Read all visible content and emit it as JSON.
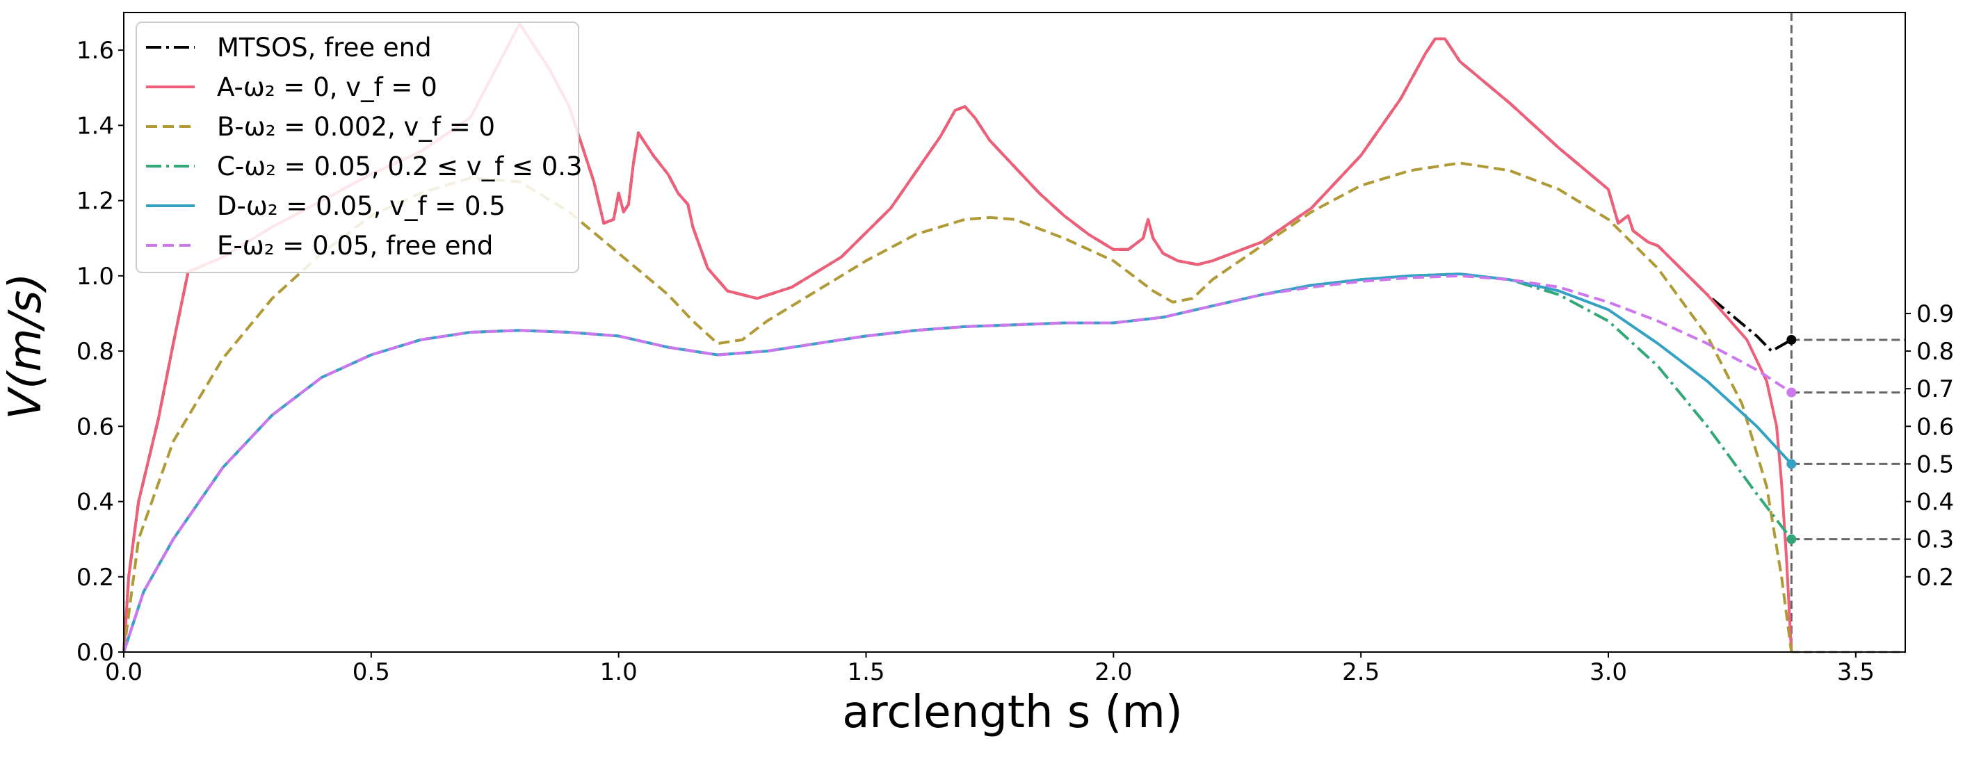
{
  "chart_data": {
    "type": "line",
    "xlabel": "arclength s (m)",
    "ylabel": "V(m/s)",
    "xlim": [
      0.0,
      3.6
    ],
    "ylim": [
      0.0,
      1.7
    ],
    "xticks": [
      "0.0",
      "0.5",
      "1.0",
      "1.5",
      "2.0",
      "2.5",
      "3.0",
      "3.5"
    ],
    "yticks": [
      "0.0",
      "0.2",
      "0.4",
      "0.6",
      "0.8",
      "1.0",
      "1.2",
      "1.4",
      "1.6"
    ],
    "right_ticks": [
      "0.2",
      "0.3",
      "0.4",
      "0.5",
      "0.6",
      "0.7",
      "0.8",
      "0.9"
    ],
    "grid": false,
    "legend_position": "upper-left",
    "end_marker_s": 3.37,
    "series": [
      {
        "name": "MTSOS, free end",
        "color": "#000000",
        "style": "dashdot",
        "end_value": 0.83,
        "points": [
          [
            0,
            0
          ],
          [
            0.01,
            0.2
          ],
          [
            0.03,
            0.4
          ],
          [
            0.07,
            0.62
          ],
          [
            0.1,
            0.82
          ],
          [
            0.13,
            1.01
          ],
          [
            0.2,
            1.05
          ],
          [
            0.3,
            1.13
          ],
          [
            0.4,
            1.2
          ],
          [
            0.5,
            1.27
          ],
          [
            0.6,
            1.33
          ],
          [
            0.7,
            1.42
          ],
          [
            0.8,
            1.67
          ],
          [
            0.86,
            1.55
          ],
          [
            0.9,
            1.45
          ],
          [
            0.95,
            1.25
          ],
          [
            0.97,
            1.14
          ],
          [
            0.99,
            1.15
          ],
          [
            1.0,
            1.22
          ],
          [
            1.01,
            1.17
          ],
          [
            1.02,
            1.19
          ],
          [
            1.03,
            1.3
          ],
          [
            1.04,
            1.38
          ],
          [
            1.07,
            1.32
          ],
          [
            1.1,
            1.27
          ],
          [
            1.12,
            1.22
          ],
          [
            1.14,
            1.19
          ],
          [
            1.15,
            1.13
          ],
          [
            1.18,
            1.02
          ],
          [
            1.22,
            0.96
          ],
          [
            1.28,
            0.94
          ],
          [
            1.35,
            0.97
          ],
          [
            1.45,
            1.05
          ],
          [
            1.55,
            1.18
          ],
          [
            1.65,
            1.37
          ],
          [
            1.68,
            1.44
          ],
          [
            1.7,
            1.45
          ],
          [
            1.72,
            1.42
          ],
          [
            1.75,
            1.36
          ],
          [
            1.8,
            1.29
          ],
          [
            1.85,
            1.22
          ],
          [
            1.9,
            1.16
          ],
          [
            1.95,
            1.11
          ],
          [
            2.0,
            1.07
          ],
          [
            2.03,
            1.07
          ],
          [
            2.06,
            1.1
          ],
          [
            2.07,
            1.15
          ],
          [
            2.08,
            1.1
          ],
          [
            2.1,
            1.06
          ],
          [
            2.13,
            1.04
          ],
          [
            2.17,
            1.03
          ],
          [
            2.2,
            1.04
          ],
          [
            2.3,
            1.09
          ],
          [
            2.4,
            1.18
          ],
          [
            2.5,
            1.32
          ],
          [
            2.58,
            1.47
          ],
          [
            2.63,
            1.59
          ],
          [
            2.65,
            1.63
          ],
          [
            2.67,
            1.63
          ],
          [
            2.7,
            1.57
          ],
          [
            2.8,
            1.46
          ],
          [
            2.9,
            1.34
          ],
          [
            3.0,
            1.23
          ],
          [
            3.02,
            1.14
          ],
          [
            3.04,
            1.16
          ],
          [
            3.05,
            1.12
          ],
          [
            3.08,
            1.09
          ],
          [
            3.1,
            1.08
          ],
          [
            3.2,
            0.95
          ],
          [
            3.3,
            0.84
          ],
          [
            3.33,
            0.8
          ],
          [
            3.37,
            0.83
          ]
        ]
      },
      {
        "name": "A-ω₂ = 0, v_f = 0",
        "color": "#ef5f7a",
        "style": "solid",
        "end_value": null,
        "points": [
          [
            0,
            0
          ],
          [
            0.01,
            0.2
          ],
          [
            0.03,
            0.4
          ],
          [
            0.07,
            0.62
          ],
          [
            0.1,
            0.82
          ],
          [
            0.13,
            1.01
          ],
          [
            0.2,
            1.05
          ],
          [
            0.3,
            1.13
          ],
          [
            0.4,
            1.2
          ],
          [
            0.5,
            1.27
          ],
          [
            0.6,
            1.33
          ],
          [
            0.7,
            1.42
          ],
          [
            0.8,
            1.67
          ],
          [
            0.86,
            1.55
          ],
          [
            0.9,
            1.45
          ],
          [
            0.95,
            1.25
          ],
          [
            0.97,
            1.14
          ],
          [
            0.99,
            1.15
          ],
          [
            1.0,
            1.22
          ],
          [
            1.01,
            1.17
          ],
          [
            1.02,
            1.19
          ],
          [
            1.03,
            1.3
          ],
          [
            1.04,
            1.38
          ],
          [
            1.07,
            1.32
          ],
          [
            1.1,
            1.27
          ],
          [
            1.12,
            1.22
          ],
          [
            1.14,
            1.19
          ],
          [
            1.15,
            1.13
          ],
          [
            1.18,
            1.02
          ],
          [
            1.22,
            0.96
          ],
          [
            1.28,
            0.94
          ],
          [
            1.35,
            0.97
          ],
          [
            1.45,
            1.05
          ],
          [
            1.55,
            1.18
          ],
          [
            1.65,
            1.37
          ],
          [
            1.68,
            1.44
          ],
          [
            1.7,
            1.45
          ],
          [
            1.72,
            1.42
          ],
          [
            1.75,
            1.36
          ],
          [
            1.8,
            1.29
          ],
          [
            1.85,
            1.22
          ],
          [
            1.9,
            1.16
          ],
          [
            1.95,
            1.11
          ],
          [
            2.0,
            1.07
          ],
          [
            2.03,
            1.07
          ],
          [
            2.06,
            1.1
          ],
          [
            2.07,
            1.15
          ],
          [
            2.08,
            1.1
          ],
          [
            2.1,
            1.06
          ],
          [
            2.13,
            1.04
          ],
          [
            2.17,
            1.03
          ],
          [
            2.2,
            1.04
          ],
          [
            2.3,
            1.09
          ],
          [
            2.4,
            1.18
          ],
          [
            2.5,
            1.32
          ],
          [
            2.58,
            1.47
          ],
          [
            2.63,
            1.59
          ],
          [
            2.65,
            1.63
          ],
          [
            2.67,
            1.63
          ],
          [
            2.7,
            1.57
          ],
          [
            2.8,
            1.46
          ],
          [
            2.9,
            1.34
          ],
          [
            3.0,
            1.23
          ],
          [
            3.02,
            1.14
          ],
          [
            3.04,
            1.16
          ],
          [
            3.05,
            1.12
          ],
          [
            3.08,
            1.09
          ],
          [
            3.1,
            1.08
          ],
          [
            3.2,
            0.95
          ],
          [
            3.28,
            0.83
          ],
          [
            3.32,
            0.72
          ],
          [
            3.34,
            0.6
          ],
          [
            3.35,
            0.45
          ],
          [
            3.36,
            0.25
          ],
          [
            3.37,
            0.0
          ]
        ]
      },
      {
        "name": "B-ω₂ = 0.002, v_f = 0",
        "color": "#b09a36",
        "style": "dashed",
        "end_value": null,
        "points": [
          [
            0,
            0
          ],
          [
            0.03,
            0.3
          ],
          [
            0.1,
            0.56
          ],
          [
            0.2,
            0.78
          ],
          [
            0.3,
            0.94
          ],
          [
            0.4,
            1.06
          ],
          [
            0.5,
            1.16
          ],
          [
            0.6,
            1.22
          ],
          [
            0.7,
            1.26
          ],
          [
            0.8,
            1.25
          ],
          [
            0.9,
            1.17
          ],
          [
            1.0,
            1.06
          ],
          [
            1.1,
            0.95
          ],
          [
            1.15,
            0.88
          ],
          [
            1.2,
            0.82
          ],
          [
            1.25,
            0.83
          ],
          [
            1.3,
            0.88
          ],
          [
            1.4,
            0.96
          ],
          [
            1.5,
            1.04
          ],
          [
            1.6,
            1.11
          ],
          [
            1.7,
            1.15
          ],
          [
            1.75,
            1.155
          ],
          [
            1.8,
            1.15
          ],
          [
            1.9,
            1.1
          ],
          [
            2.0,
            1.04
          ],
          [
            2.08,
            0.96
          ],
          [
            2.12,
            0.93
          ],
          [
            2.16,
            0.94
          ],
          [
            2.2,
            0.99
          ],
          [
            2.3,
            1.08
          ],
          [
            2.4,
            1.17
          ],
          [
            2.5,
            1.24
          ],
          [
            2.6,
            1.28
          ],
          [
            2.7,
            1.3
          ],
          [
            2.8,
            1.28
          ],
          [
            2.9,
            1.23
          ],
          [
            3.0,
            1.15
          ],
          [
            3.1,
            1.02
          ],
          [
            3.2,
            0.84
          ],
          [
            3.27,
            0.66
          ],
          [
            3.32,
            0.44
          ],
          [
            3.35,
            0.2
          ],
          [
            3.37,
            0.0
          ]
        ]
      },
      {
        "name": "C-ω₂ = 0.05, 0.2 ≤ v_f ≤ 0.3",
        "color": "#33a877",
        "style": "dashdot",
        "end_value": 0.3,
        "points": [
          [
            0,
            0
          ],
          [
            0.04,
            0.16
          ],
          [
            0.1,
            0.3
          ],
          [
            0.2,
            0.49
          ],
          [
            0.3,
            0.63
          ],
          [
            0.4,
            0.73
          ],
          [
            0.5,
            0.79
          ],
          [
            0.6,
            0.83
          ],
          [
            0.7,
            0.85
          ],
          [
            0.8,
            0.855
          ],
          [
            0.9,
            0.85
          ],
          [
            1.0,
            0.84
          ],
          [
            1.1,
            0.81
          ],
          [
            1.2,
            0.79
          ],
          [
            1.3,
            0.8
          ],
          [
            1.4,
            0.82
          ],
          [
            1.5,
            0.84
          ],
          [
            1.6,
            0.855
          ],
          [
            1.7,
            0.865
          ],
          [
            1.8,
            0.87
          ],
          [
            1.9,
            0.875
          ],
          [
            2.0,
            0.875
          ],
          [
            2.1,
            0.89
          ],
          [
            2.2,
            0.92
          ],
          [
            2.3,
            0.95
          ],
          [
            2.4,
            0.975
          ],
          [
            2.5,
            0.99
          ],
          [
            2.6,
            1.0
          ],
          [
            2.7,
            1.005
          ],
          [
            2.8,
            0.99
          ],
          [
            2.9,
            0.95
          ],
          [
            3.0,
            0.88
          ],
          [
            3.1,
            0.76
          ],
          [
            3.2,
            0.6
          ],
          [
            3.3,
            0.42
          ],
          [
            3.37,
            0.3
          ]
        ]
      },
      {
        "name": "D-ω₂ = 0.05, v_f = 0.5",
        "color": "#36a2c3",
        "style": "solid",
        "end_value": 0.5,
        "points": [
          [
            0,
            0
          ],
          [
            0.04,
            0.16
          ],
          [
            0.1,
            0.3
          ],
          [
            0.2,
            0.49
          ],
          [
            0.3,
            0.63
          ],
          [
            0.4,
            0.73
          ],
          [
            0.5,
            0.79
          ],
          [
            0.6,
            0.83
          ],
          [
            0.7,
            0.85
          ],
          [
            0.8,
            0.855
          ],
          [
            0.9,
            0.85
          ],
          [
            1.0,
            0.84
          ],
          [
            1.1,
            0.81
          ],
          [
            1.2,
            0.79
          ],
          [
            1.3,
            0.8
          ],
          [
            1.4,
            0.82
          ],
          [
            1.5,
            0.84
          ],
          [
            1.6,
            0.855
          ],
          [
            1.7,
            0.865
          ],
          [
            1.8,
            0.87
          ],
          [
            1.9,
            0.875
          ],
          [
            2.0,
            0.875
          ],
          [
            2.1,
            0.89
          ],
          [
            2.2,
            0.92
          ],
          [
            2.3,
            0.95
          ],
          [
            2.4,
            0.975
          ],
          [
            2.5,
            0.99
          ],
          [
            2.6,
            1.0
          ],
          [
            2.7,
            1.005
          ],
          [
            2.8,
            0.99
          ],
          [
            2.9,
            0.96
          ],
          [
            3.0,
            0.91
          ],
          [
            3.1,
            0.82
          ],
          [
            3.2,
            0.72
          ],
          [
            3.3,
            0.6
          ],
          [
            3.37,
            0.5
          ]
        ]
      },
      {
        "name": "E-ω₂ = 0.05, free end",
        "color": "#cc77ee",
        "style": "dashed",
        "end_value": 0.69,
        "points": [
          [
            0,
            0
          ],
          [
            0.04,
            0.16
          ],
          [
            0.1,
            0.3
          ],
          [
            0.2,
            0.49
          ],
          [
            0.3,
            0.63
          ],
          [
            0.4,
            0.73
          ],
          [
            0.5,
            0.79
          ],
          [
            0.6,
            0.83
          ],
          [
            0.7,
            0.85
          ],
          [
            0.8,
            0.855
          ],
          [
            0.9,
            0.85
          ],
          [
            1.0,
            0.84
          ],
          [
            1.1,
            0.81
          ],
          [
            1.2,
            0.79
          ],
          [
            1.3,
            0.8
          ],
          [
            1.4,
            0.82
          ],
          [
            1.5,
            0.84
          ],
          [
            1.6,
            0.855
          ],
          [
            1.7,
            0.865
          ],
          [
            1.8,
            0.87
          ],
          [
            1.9,
            0.875
          ],
          [
            2.0,
            0.875
          ],
          [
            2.1,
            0.89
          ],
          [
            2.2,
            0.92
          ],
          [
            2.3,
            0.95
          ],
          [
            2.4,
            0.97
          ],
          [
            2.5,
            0.985
          ],
          [
            2.6,
            0.995
          ],
          [
            2.7,
            1.0
          ],
          [
            2.8,
            0.99
          ],
          [
            2.9,
            0.97
          ],
          [
            3.0,
            0.93
          ],
          [
            3.1,
            0.88
          ],
          [
            3.2,
            0.82
          ],
          [
            3.3,
            0.75
          ],
          [
            3.37,
            0.69
          ]
        ]
      }
    ]
  }
}
